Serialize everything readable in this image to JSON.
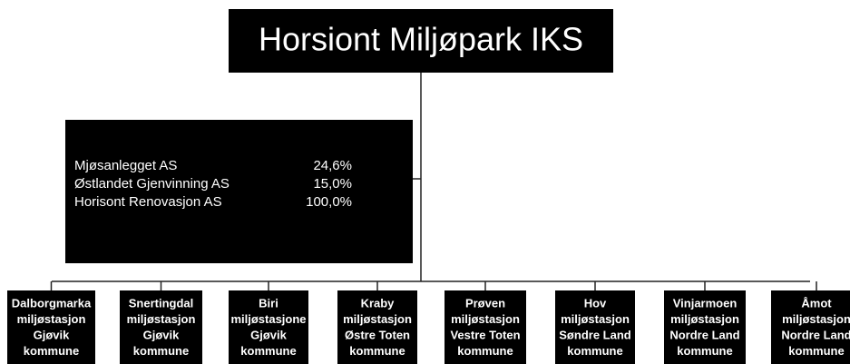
{
  "title": "Horsiont Miljøpark IKS",
  "owned": [
    {
      "name": "Mjøsanlegget AS",
      "share": "24,6%"
    },
    {
      "name": "Østlandet Gjenvinning AS",
      "share": "15,0%"
    },
    {
      "name": "Horisont Renovasjon AS",
      "share": "100,0%"
    }
  ],
  "stations": [
    {
      "lines": [
        "Dalborgmarka",
        "miljøstasjon",
        "Gjøvik",
        "kommune"
      ]
    },
    {
      "lines": [
        "Snertingdal",
        "miljøstasjon",
        "Gjøvik",
        "kommune"
      ]
    },
    {
      "lines": [
        "Biri",
        "miljøstasjone",
        "Gjøvik",
        "kommune"
      ]
    },
    {
      "lines": [
        "Kraby",
        "miljøstasjon",
        "Østre Toten",
        "kommune"
      ]
    },
    {
      "lines": [
        "Prøven",
        "miljøstasjon",
        "Vestre Toten",
        "kommune"
      ]
    },
    {
      "lines": [
        "Hov",
        "miljøstasjon",
        "Søndre Land",
        "kommune"
      ]
    },
    {
      "lines": [
        "Vinjarmoen",
        "miljøstasjon",
        "Nordre Land",
        "kommune"
      ]
    },
    {
      "lines": [
        "Åmot",
        "miljøstasjon",
        "Nordre Land",
        "kommune"
      ]
    }
  ]
}
